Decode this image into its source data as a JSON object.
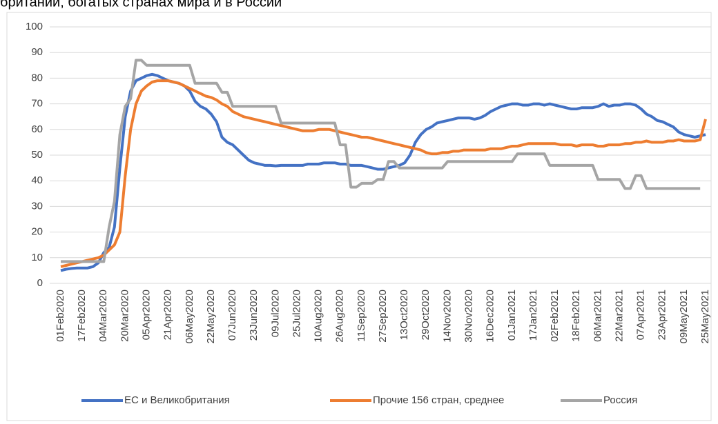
{
  "chart_data": {
    "type": "line",
    "title": "британии, богатых странах мира и в России",
    "categories": [
      "01Feb2020",
      null,
      null,
      null,
      "17Feb2020",
      null,
      null,
      null,
      "04Mar2020",
      null,
      null,
      null,
      "20Mar2020",
      null,
      null,
      null,
      "05Apr2020",
      null,
      null,
      null,
      "21Apr2020",
      null,
      null,
      null,
      "06May2020",
      null,
      null,
      null,
      "22May2020",
      null,
      null,
      null,
      "07Jun2020",
      null,
      null,
      null,
      "23Jun2020",
      null,
      null,
      null,
      "09Jul2020",
      null,
      null,
      null,
      "25Jul2020",
      null,
      null,
      null,
      "10Aug2020",
      null,
      null,
      null,
      "26Aug2020",
      null,
      null,
      null,
      "11Sep2020",
      null,
      null,
      null,
      "27Sep2020",
      null,
      null,
      null,
      "13Oct2020",
      null,
      null,
      null,
      "29Oct2020",
      null,
      null,
      null,
      "14Nov2020",
      null,
      null,
      null,
      "30Nov2020",
      null,
      null,
      null,
      "16Dec2020",
      null,
      null,
      null,
      "01Jan2021",
      null,
      null,
      null,
      "17Jan2021",
      null,
      null,
      null,
      "02Feb2021",
      null,
      null,
      null,
      "18Feb2021",
      null,
      null,
      null,
      "06Mar2021",
      null,
      null,
      null,
      "22Mar2021",
      null,
      null,
      null,
      "07Apr2021",
      null,
      null,
      null,
      "23Apr2021",
      null,
      null,
      null,
      "09May2021",
      null,
      null,
      null,
      "25May2021"
    ],
    "series": [
      {
        "name": "ЕС и Великобритания",
        "color": "#4472c4",
        "values": [
          5,
          5.5,
          5.8,
          6,
          6,
          6,
          6.5,
          8,
          12,
          14,
          22,
          45,
          65,
          75,
          79,
          80,
          81,
          81.5,
          81,
          80,
          79,
          78.5,
          78,
          77,
          75,
          71,
          69,
          68,
          66,
          63,
          57,
          55,
          54,
          52,
          50,
          48,
          47,
          46.5,
          46,
          46,
          45.8,
          46,
          46,
          46,
          46,
          46,
          46.5,
          46.5,
          46.5,
          47,
          47,
          47,
          46.5,
          46.5,
          46,
          46,
          46,
          45.5,
          45,
          44.5,
          44.5,
          45,
          45.5,
          46,
          47,
          50,
          55,
          58,
          60,
          61,
          62.5,
          63,
          63.5,
          64,
          64.5,
          64.5,
          64.5,
          64,
          64.5,
          65.5,
          67,
          68,
          69,
          69.5,
          70,
          70,
          69.5,
          69.5,
          70,
          70,
          69.5,
          70,
          69.5,
          69,
          68.5,
          68,
          68,
          68.5,
          68.5,
          68.5,
          69,
          70,
          69,
          69.5,
          69.5,
          70,
          70,
          69.5,
          68,
          66,
          65,
          63.5,
          63,
          62,
          61,
          59,
          58,
          57.5,
          57,
          57.5,
          58
        ]
      },
      {
        "name": "Прочие 156 стран, среднее",
        "color": "#ed7d31",
        "values": [
          6.5,
          7,
          7.5,
          8,
          8.5,
          9,
          9.5,
          10,
          11,
          13,
          15,
          20,
          42,
          60,
          70,
          75,
          77,
          78.5,
          79,
          79,
          79,
          78.5,
          78,
          77,
          76,
          75,
          74,
          73,
          72.5,
          71.5,
          70,
          69,
          67,
          66,
          65,
          64.5,
          64,
          63.5,
          63,
          62.5,
          62,
          61.5,
          61,
          60.5,
          60,
          59.5,
          59.5,
          59.5,
          60,
          60,
          60,
          59.5,
          59,
          58.5,
          58,
          57.5,
          57,
          57,
          56.5,
          56,
          55.5,
          55,
          54.5,
          54,
          53.5,
          53,
          52.5,
          52,
          51,
          50.5,
          50.5,
          51,
          51,
          51.5,
          51.5,
          52,
          52,
          52,
          52,
          52,
          52.5,
          52.5,
          52.5,
          53,
          53.5,
          53.5,
          54,
          54.5,
          54.5,
          54.5,
          54.5,
          54.5,
          54.5,
          54,
          54,
          54,
          53.5,
          54,
          54,
          54,
          53.5,
          53.5,
          54,
          54,
          54,
          54.5,
          54.5,
          55,
          55,
          55.5,
          55,
          55,
          55,
          55.5,
          55.5,
          56,
          55.5,
          55.5,
          55.5,
          56,
          64
        ]
      },
      {
        "name": "Россия",
        "color": "#a5a5a5",
        "values": [
          8.5,
          8.5,
          8.5,
          8.5,
          8.5,
          8.5,
          8.5,
          8.5,
          8.5,
          22,
          32,
          58,
          69,
          72,
          87,
          87,
          85,
          85,
          85,
          85,
          85,
          85,
          85,
          85,
          85,
          78,
          78,
          78,
          78,
          78,
          74.5,
          74.5,
          69,
          69,
          69,
          69,
          69,
          69,
          69,
          69,
          69,
          62.5,
          62.5,
          62.5,
          62.5,
          62.5,
          62.5,
          62.5,
          62.5,
          62.5,
          62.5,
          62.5,
          54,
          54,
          37.5,
          37.5,
          39,
          39,
          39,
          40.5,
          40.5,
          47.5,
          47.5,
          45,
          45,
          45,
          45,
          45,
          45,
          45,
          45,
          45,
          47.5,
          47.5,
          47.5,
          47.5,
          47.5,
          47.5,
          47.5,
          47.5,
          47.5,
          47.5,
          47.5,
          47.5,
          47.5,
          50.5,
          50.5,
          50.5,
          50.5,
          50.5,
          50.5,
          46,
          46,
          46,
          46,
          46,
          46,
          46,
          46,
          46,
          40.5,
          40.5,
          40.5,
          40.5,
          40.5,
          37,
          37,
          42,
          42,
          37,
          37,
          37,
          37,
          37,
          37,
          37,
          37,
          37,
          37,
          37,
          null
        ]
      }
    ],
    "ylim": [
      0,
      100
    ],
    "yticks": [
      0,
      10,
      20,
      30,
      40,
      50,
      60,
      70,
      80,
      90,
      100
    ],
    "grid": true,
    "legend": "bottom"
  }
}
